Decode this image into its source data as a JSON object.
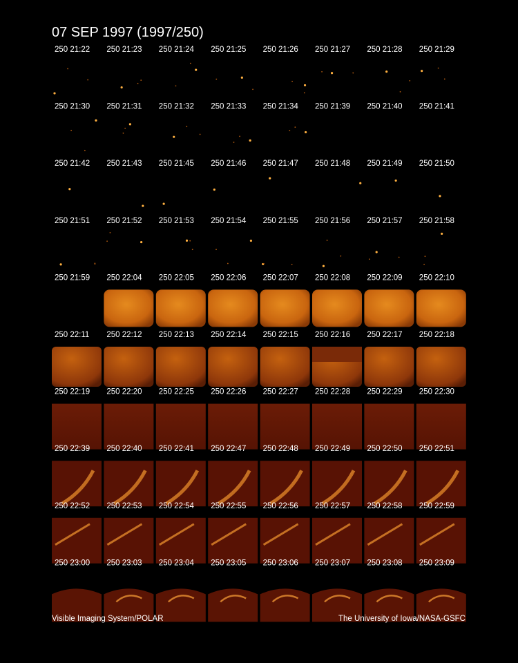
{
  "header": {
    "title": "07 SEP 1997  (1997/250)"
  },
  "frames": [
    [
      "250 21:22",
      "250 21:23",
      "250 21:24",
      "250 21:25",
      "250 21:26",
      "250 21:27",
      "250 21:28",
      "250 21:29"
    ],
    [
      "250 21:30",
      "250 21:31",
      "250 21:32",
      "250 21:33",
      "250 21:34",
      "250 21:39",
      "250 21:40",
      "250 21:41"
    ],
    [
      "250 21:42",
      "250 21:43",
      "250 21:45",
      "250 21:46",
      "250 21:47",
      "250 21:48",
      "250 21:49",
      "250 21:50"
    ],
    [
      "250 21:51",
      "250 21:52",
      "250 21:53",
      "250 21:54",
      "250 21:55",
      "250 21:56",
      "250 21:57",
      "250 21:58"
    ],
    [
      "250 21:59",
      "250 22:04",
      "250 22:05",
      "250 22:06",
      "250 22:07",
      "250 22:08",
      "250 22:09",
      "250 22:10"
    ],
    [
      "250 22:11",
      "250 22:12",
      "250 22:13",
      "250 22:14",
      "250 22:15",
      "250 22:16",
      "250 22:17",
      "250 22:18"
    ],
    [
      "250 22:19",
      "250 22:20",
      "250 22:25",
      "250 22:26",
      "250 22:27",
      "250 22:28",
      "250 22:29",
      "250 22:30"
    ],
    [
      "250 22:39",
      "250 22:40",
      "250 22:41",
      "250 22:47",
      "250 22:48",
      "250 22:49",
      "250 22:50",
      "250 22:51"
    ],
    [
      "250 22:52",
      "250 22:53",
      "250 22:54",
      "250 22:55",
      "250 22:56",
      "250 22:57",
      "250 22:58",
      "250 22:59"
    ],
    [
      "250 23:00",
      "250 23:03",
      "250 23:04",
      "250 23:05",
      "250 23:06",
      "250 23:07",
      "250 23:08",
      "250 23:09"
    ]
  ],
  "footer": {
    "left": "Visible Imaging System/POLAR",
    "right": "The University of Iowa/NASA-GSFC"
  }
}
